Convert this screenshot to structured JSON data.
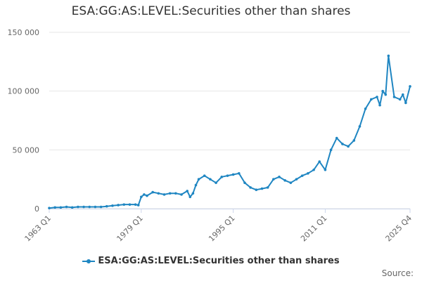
{
  "title": "ESA:GG:AS:LEVEL:Securities other than shares",
  "source_label": "Source:",
  "colors": {
    "series": "#1f86c2",
    "grid": "#e6e6e6",
    "axis_text": "#666666"
  },
  "chart_data": {
    "type": "line",
    "title": "ESA:GG:AS:LEVEL:Securities other than shares",
    "xlabel": "",
    "ylabel": "",
    "ylim": [
      0,
      150000
    ],
    "yticks": [
      0,
      50000,
      100000,
      150000
    ],
    "ytick_labels": [
      "0",
      "50 000",
      "100 000",
      "150 000"
    ],
    "xrange": [
      1963.0,
      2025.75
    ],
    "xticks": [
      1963.0,
      1979.0,
      1995.0,
      2011.0,
      2025.75
    ],
    "xtick_labels": [
      "1963 Q1",
      "1979 Q1",
      "1995 Q1",
      "2011 Q1",
      "2025 Q4"
    ],
    "legend": "bottom",
    "grid": "horizontal",
    "series": [
      {
        "name": "ESA:GG:AS:LEVEL:Securities other than shares",
        "x": [
          1963.0,
          1964.0,
          1965.0,
          1966.0,
          1967.0,
          1968.0,
          1969.0,
          1970.0,
          1971.0,
          1972.0,
          1973.0,
          1974.0,
          1975.0,
          1976.0,
          1977.0,
          1978.0,
          1978.5,
          1979.0,
          1979.5,
          1980.0,
          1981.0,
          1982.0,
          1983.0,
          1984.0,
          1985.0,
          1986.0,
          1987.0,
          1987.5,
          1988.0,
          1988.5,
          1989.0,
          1990.0,
          1991.0,
          1992.0,
          1993.0,
          1994.0,
          1995.0,
          1996.0,
          1997.0,
          1998.0,
          1999.0,
          2000.0,
          2001.0,
          2002.0,
          2003.0,
          2004.0,
          2005.0,
          2006.0,
          2007.0,
          2008.0,
          2009.0,
          2010.0,
          2011.0,
          2012.0,
          2013.0,
          2014.0,
          2015.0,
          2016.0,
          2017.0,
          2018.0,
          2019.0,
          2020.0,
          2020.5,
          2021.0,
          2021.5,
          2022.0,
          2023.0,
          2024.0,
          2024.5,
          2025.0,
          2025.75
        ],
        "y": [
          500,
          1000,
          1000,
          1500,
          1000,
          1500,
          1500,
          1500,
          1500,
          1500,
          2000,
          2500,
          3000,
          3500,
          3500,
          3500,
          3000,
          10000,
          12000,
          11000,
          14000,
          13000,
          12000,
          13000,
          13000,
          12000,
          15000,
          10000,
          13000,
          20000,
          25000,
          28000,
          25000,
          22000,
          27000,
          28000,
          29000,
          30000,
          22000,
          18000,
          16000,
          17000,
          18000,
          25000,
          27000,
          24000,
          22000,
          25000,
          28000,
          30000,
          33000,
          40000,
          33000,
          50000,
          60000,
          55000,
          53000,
          58000,
          70000,
          85000,
          93000,
          95000,
          88000,
          100000,
          97000,
          130000,
          95000,
          93000,
          97000,
          90000,
          104000
        ]
      }
    ]
  }
}
